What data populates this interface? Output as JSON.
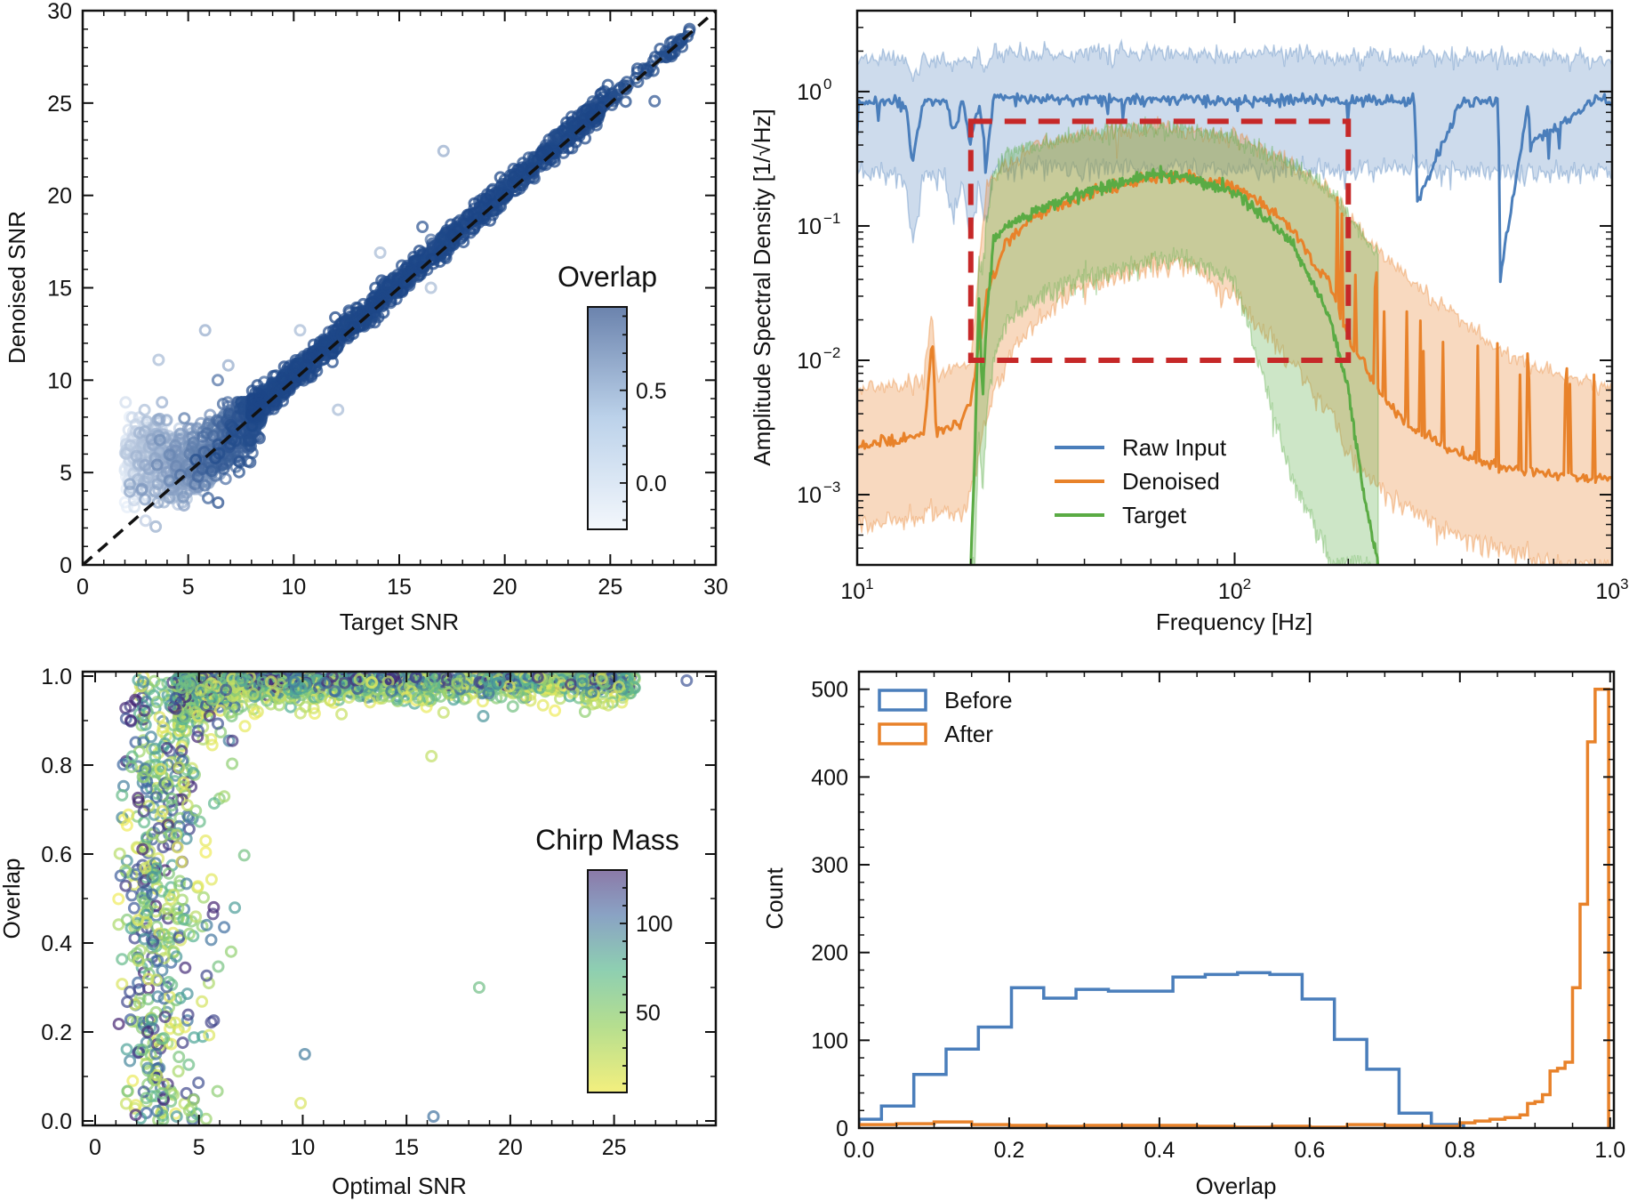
{
  "chart_data": [
    {
      "id": "snr-scatter",
      "type": "scatter",
      "title": "",
      "xlabel": "Target SNR",
      "ylabel": "Denoised SNR",
      "xlim": [
        0,
        30
      ],
      "ylim": [
        0,
        30
      ],
      "xticks": [
        "0",
        "5",
        "10",
        "15",
        "20",
        "25",
        "30"
      ],
      "yticks": [
        "0",
        "5",
        "10",
        "15",
        "20",
        "25",
        "30"
      ],
      "reference_line": {
        "style": "dashed",
        "color": "#111111",
        "from": [
          0,
          0
        ],
        "to": [
          30,
          30
        ]
      },
      "colorbar": {
        "title": "Overlap",
        "range": [
          -0.25,
          0.95
        ],
        "ticks": [
          "0.0",
          "0.5"
        ],
        "tick_values": [
          0.0,
          0.5
        ],
        "color_low": "#f3f7fc",
        "color_high": "#6b83ad"
      },
      "point_color_dense": "#1f4a8a",
      "description": "Points cluster tightly along y=x for SNR > 8; at low SNR (2-8) denoised SNR saturates around 4-8 with low overlap (light colors).",
      "outliers": [
        {
          "x": 17.1,
          "y": 22.4,
          "overlap": 0.2
        },
        {
          "x": 16.1,
          "y": 18.3,
          "overlap": 0.8
        },
        {
          "x": 16.5,
          "y": 17.6,
          "overlap": 0.6
        },
        {
          "x": 14.1,
          "y": 16.9,
          "overlap": 0.1
        },
        {
          "x": 16.5,
          "y": 15.0,
          "overlap": 0.1
        },
        {
          "x": 12.1,
          "y": 8.4,
          "overlap": 0.1
        },
        {
          "x": 5.8,
          "y": 12.7,
          "overlap": 0.2
        },
        {
          "x": 3.6,
          "y": 11.1,
          "overlap": 0.1
        },
        {
          "x": 6.9,
          "y": 10.8,
          "overlap": 0.2
        },
        {
          "x": 6.4,
          "y": 10.0,
          "overlap": 0.6
        },
        {
          "x": 8.6,
          "y": 9.9,
          "overlap": 0.7
        },
        {
          "x": 27.1,
          "y": 25.1,
          "overlap": 0.8
        },
        {
          "x": 10.3,
          "y": 12.7,
          "overlap": 0.1
        }
      ]
    },
    {
      "id": "asd",
      "type": "line",
      "xscale": "log",
      "yscale": "log",
      "xlabel": "Frequency [Hz]",
      "ylabel": "Amplitude Spectral Density [1/√Hz]",
      "xlim": [
        10,
        1000
      ],
      "ylim": [
        0.0003,
        4
      ],
      "xticks": [
        {
          "v": 10,
          "base": "10",
          "exp": "1"
        },
        {
          "v": 100,
          "base": "10",
          "exp": "2"
        },
        {
          "v": 1000,
          "base": "10",
          "exp": "3"
        }
      ],
      "yticks": [
        {
          "v": 1,
          "base": "10",
          "exp": "0"
        },
        {
          "v": 0.1,
          "base": "10",
          "exp": "−1"
        },
        {
          "v": 0.01,
          "base": "10",
          "exp": "−2"
        },
        {
          "v": 0.001,
          "base": "10",
          "exp": "−3"
        }
      ],
      "legend": {
        "position": "lower-center",
        "entries": [
          "Raw Input",
          "Denoised",
          "Target"
        ]
      },
      "series": [
        {
          "name": "Raw Input",
          "color": "#4a7ebb",
          "x": [
            10,
            12,
            13.5,
            14,
            15,
            17,
            18,
            19,
            20,
            21,
            22,
            23,
            25,
            30,
            40,
            60,
            100,
            200,
            300,
            305,
            400,
            500,
            505,
            600,
            605,
            900,
            1000
          ],
          "y": [
            0.8,
            0.85,
            0.8,
            0.3,
            0.85,
            0.85,
            0.5,
            0.85,
            0.4,
            0.85,
            0.3,
            0.9,
            0.88,
            0.88,
            0.87,
            0.87,
            0.86,
            0.86,
            0.86,
            0.15,
            0.86,
            0.86,
            0.04,
            0.86,
            0.4,
            0.86,
            0.86
          ],
          "band_low": [
            0.25,
            0.25,
            0.22,
            0.07,
            0.25,
            0.22,
            0.12,
            0.22,
            0.08,
            0.2,
            0.1,
            0.28,
            0.28,
            0.27,
            0.27,
            0.27,
            0.26,
            0.26,
            0.26,
            0.26,
            0.25,
            0.25,
            0.25,
            0.25,
            0.25,
            0.25,
            0.25
          ],
          "band_high": [
            1.8,
            1.8,
            1.7,
            1.2,
            1.8,
            1.8,
            1.6,
            1.8,
            1.6,
            1.8,
            1.5,
            2.0,
            2.0,
            1.95,
            1.95,
            1.9,
            1.9,
            1.85,
            1.85,
            1.85,
            1.8,
            1.8,
            1.8,
            1.8,
            1.8,
            1.75,
            1.75
          ]
        },
        {
          "name": "Denoised",
          "color": "#e8822a",
          "x": [
            10,
            12,
            15,
            15.8,
            16.2,
            17,
            19,
            20,
            21,
            22,
            25,
            30,
            40,
            60,
            70,
            100,
            140,
            180,
            200,
            250,
            300,
            400,
            500,
            700,
            1000
          ],
          "y": [
            0.0023,
            0.0025,
            0.0028,
            0.015,
            0.003,
            0.003,
            0.0035,
            0.005,
            0.012,
            0.03,
            0.08,
            0.12,
            0.17,
            0.23,
            0.24,
            0.2,
            0.1,
            0.035,
            0.015,
            0.005,
            0.003,
            0.002,
            0.0016,
            0.0014,
            0.0013
          ],
          "band_low": [
            0.0006,
            0.0006,
            0.0007,
            0.0008,
            0.0007,
            0.0007,
            0.0008,
            0.001,
            0.002,
            0.004,
            0.01,
            0.02,
            0.035,
            0.05,
            0.055,
            0.03,
            0.01,
            0.004,
            0.002,
            0.001,
            0.0007,
            0.0005,
            0.0004,
            0.0003,
            0.0003
          ],
          "band_high": [
            0.006,
            0.0065,
            0.007,
            0.025,
            0.008,
            0.008,
            0.009,
            0.01,
            0.05,
            0.2,
            0.3,
            0.4,
            0.48,
            0.55,
            0.55,
            0.45,
            0.3,
            0.18,
            0.12,
            0.06,
            0.035,
            0.02,
            0.012,
            0.008,
            0.006
          ]
        },
        {
          "name": "Target",
          "color": "#5aab44",
          "x": [
            20,
            20.5,
            21,
            21.5,
            22,
            23,
            25,
            30,
            40,
            60,
            70,
            100,
            140,
            180,
            200,
            220,
            240
          ],
          "y": [
            0.0003,
            0.002,
            0.03,
            0.005,
            0.02,
            0.08,
            0.1,
            0.13,
            0.18,
            0.24,
            0.24,
            0.18,
            0.08,
            0.02,
            0.006,
            0.001,
            0.0003
          ],
          "band_low": [
            0.0003,
            0.0003,
            0.003,
            0.001,
            0.004,
            0.01,
            0.02,
            0.03,
            0.04,
            0.055,
            0.06,
            0.04,
            0.0015,
            0.0003,
            0.0003,
            0.0003,
            0.0003
          ],
          "band_high": [
            0.0003,
            0.005,
            0.05,
            0.05,
            0.1,
            0.25,
            0.35,
            0.4,
            0.48,
            0.55,
            0.55,
            0.45,
            0.3,
            0.18,
            0.12,
            0.08,
            0.06
          ]
        }
      ],
      "annotation_box": {
        "style": "dashed",
        "color": "#c62828",
        "x_range": [
          20,
          200
        ],
        "y_range": [
          0.01,
          0.6
        ]
      }
    },
    {
      "id": "overlap-scatter",
      "type": "scatter",
      "xlabel": "Optimal SNR",
      "ylabel": "Overlap",
      "xlim": [
        -0.6,
        29.9
      ],
      "ylim": [
        -0.01,
        1.01
      ],
      "xticks": [
        "0",
        "5",
        "10",
        "15",
        "20",
        "25"
      ],
      "yticks": [
        "0.0",
        "0.2",
        "0.4",
        "0.6",
        "0.8",
        "1.0"
      ],
      "colorbar": {
        "title": "Chirp Mass",
        "range": [
          5,
          130
        ],
        "ticks": [
          "50",
          "100"
        ],
        "tick_values": [
          50,
          100
        ],
        "colormap": "viridis"
      },
      "description": "Overlap near 1.0 for SNR > 8; widely scattered overlap for SNR 1-7; low chirp mass (yellow) tends toward lower overlap.",
      "notable_points": [
        {
          "x": 18.5,
          "y": 0.3,
          "chirp_mass": 60
        },
        {
          "x": 10.1,
          "y": 0.15,
          "chirp_mass": 95
        },
        {
          "x": 16.3,
          "y": 0.01,
          "chirp_mass": 100
        },
        {
          "x": 9.9,
          "y": 0.04,
          "chirp_mass": 15
        },
        {
          "x": 23.6,
          "y": 0.92,
          "chirp_mass": 45
        },
        {
          "x": 18.7,
          "y": 0.91,
          "chirp_mass": 85
        },
        {
          "x": 16.2,
          "y": 0.82,
          "chirp_mass": 25
        },
        {
          "x": 28.5,
          "y": 0.99,
          "chirp_mass": 110
        }
      ]
    },
    {
      "id": "overlap-hist",
      "type": "bar",
      "histtype": "step",
      "xlabel": "Overlap",
      "ylabel": "Count",
      "xlim": [
        0.0,
        1.005
      ],
      "ylim": [
        0,
        520
      ],
      "xticks": [
        "0.0",
        "0.2",
        "0.4",
        "0.6",
        "0.8",
        "1.0"
      ],
      "yticks": [
        "0",
        "100",
        "200",
        "300",
        "400",
        "500"
      ],
      "legend": {
        "position": "top-left",
        "entries": [
          "Before",
          "After"
        ]
      },
      "series": [
        {
          "name": "Before",
          "color": "#4a7ebb",
          "bin_edges": [
            0.0,
            0.03,
            0.073,
            0.116,
            0.159,
            0.203,
            0.246,
            0.289,
            0.332,
            0.375,
            0.418,
            0.461,
            0.504,
            0.547,
            0.59,
            0.633,
            0.676,
            0.719,
            0.762,
            0.805
          ],
          "counts": [
            10,
            25,
            61,
            90,
            115,
            160,
            148,
            158,
            156,
            156,
            172,
            175,
            177,
            175,
            147,
            101,
            67,
            17,
            4
          ]
        },
        {
          "name": "After",
          "color": "#e8822a",
          "bin_edges": [
            0.0,
            0.05,
            0.1,
            0.15,
            0.2,
            0.25,
            0.3,
            0.35,
            0.4,
            0.45,
            0.5,
            0.55,
            0.6,
            0.65,
            0.7,
            0.75,
            0.8,
            0.82,
            0.84,
            0.86,
            0.88,
            0.89,
            0.9,
            0.91,
            0.92,
            0.93,
            0.94,
            0.95,
            0.96,
            0.97,
            0.98,
            0.99,
            0.998
          ],
          "counts": [
            4,
            5,
            7,
            4,
            3,
            2,
            3,
            3,
            3,
            2,
            1,
            2,
            1,
            4,
            3,
            2,
            6,
            8,
            10,
            12,
            15,
            28,
            30,
            38,
            65,
            68,
            75,
            160,
            255,
            440,
            500,
            500
          ]
        }
      ]
    }
  ]
}
